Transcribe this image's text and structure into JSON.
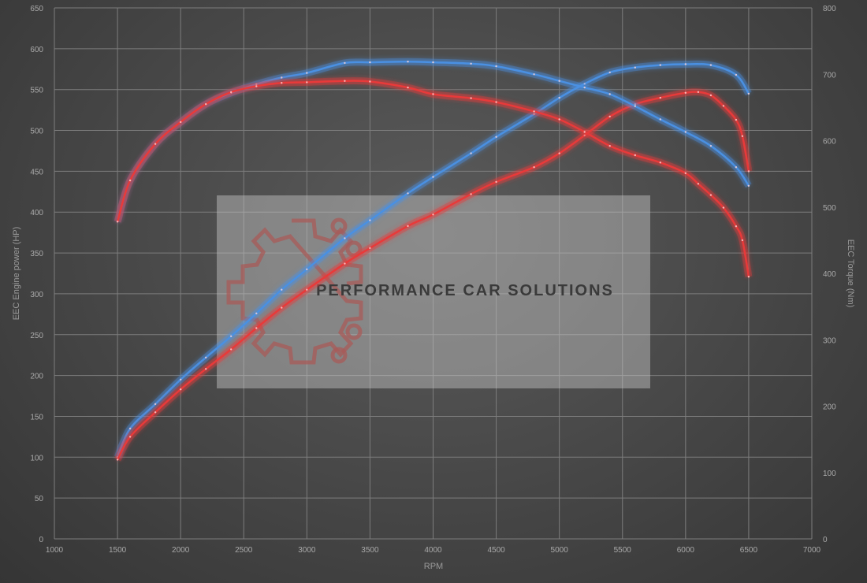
{
  "chart_data": {
    "type": "line",
    "watermark": "PERFORMANCE CAR SOLUTIONS",
    "xlabel": "RPM",
    "ylabel_left": "EEC Engine power (HP)",
    "ylabel_right": "EEC Torque (Nm)",
    "xlim": [
      1000,
      7000
    ],
    "ylim_left": [
      0,
      650
    ],
    "ylim_right": [
      0,
      800
    ],
    "x_ticks": [
      1000,
      1500,
      2000,
      2500,
      3000,
      3500,
      4000,
      4500,
      5000,
      5500,
      6000,
      6500,
      7000
    ],
    "y_left_ticks": [
      0,
      50,
      100,
      150,
      200,
      250,
      300,
      350,
      400,
      450,
      500,
      550,
      600,
      650
    ],
    "y_right_ticks": [
      0,
      100,
      200,
      300,
      400,
      500,
      600,
      700,
      800
    ],
    "grid": true,
    "series": [
      {
        "axis": "left",
        "color": "#4a90e2",
        "x": [
          1500,
          1600,
          1800,
          2000,
          2200,
          2400,
          2600,
          2800,
          3000,
          3300,
          3500,
          3800,
          4000,
          4300,
          4500,
          4800,
          5000,
          5200,
          5400,
          5600,
          5800,
          6000,
          6200,
          6400,
          6500
        ],
        "y": [
          100,
          135,
          165,
          195,
          222,
          248,
          276,
          305,
          330,
          368,
          390,
          423,
          443,
          472,
          492,
          520,
          540,
          557,
          571,
          577,
          580,
          581,
          580,
          568,
          545
        ]
      },
      {
        "axis": "left",
        "color": "#e83a3a",
        "x": [
          1500,
          1600,
          1800,
          2000,
          2200,
          2400,
          2600,
          2800,
          3000,
          3300,
          3500,
          3800,
          4000,
          4300,
          4500,
          4800,
          5000,
          5200,
          5400,
          5600,
          5800,
          6000,
          6100,
          6200,
          6300,
          6400,
          6450,
          6500
        ],
        "y": [
          97,
          125,
          155,
          183,
          208,
          232,
          258,
          283,
          305,
          337,
          356,
          383,
          397,
          422,
          437,
          455,
          472,
          494,
          517,
          532,
          540,
          546,
          547,
          543,
          530,
          513,
          493,
          450
        ]
      },
      {
        "axis": "right",
        "color": "#4a90e2",
        "x": [
          1500,
          1600,
          1800,
          2000,
          2200,
          2400,
          2600,
          2800,
          3000,
          3300,
          3500,
          3800,
          4000,
          4300,
          4500,
          4800,
          5000,
          5200,
          5400,
          5600,
          5800,
          6000,
          6200,
          6400,
          6500
        ],
        "y": [
          478,
          540,
          595,
          628,
          655,
          672,
          685,
          695,
          702,
          717,
          718,
          719,
          718,
          716,
          712,
          700,
          690,
          680,
          670,
          652,
          632,
          613,
          592,
          560,
          532
        ]
      },
      {
        "axis": "right",
        "color": "#e83a3a",
        "x": [
          1500,
          1600,
          1800,
          2000,
          2200,
          2400,
          2600,
          2800,
          3000,
          3300,
          3500,
          3800,
          4000,
          4300,
          4500,
          4800,
          5000,
          5200,
          5400,
          5600,
          5800,
          6000,
          6100,
          6200,
          6300,
          6400,
          6450,
          6500
        ],
        "y": [
          478,
          540,
          595,
          628,
          655,
          673,
          682,
          687,
          688,
          690,
          689,
          680,
          670,
          664,
          658,
          644,
          632,
          613,
          592,
          578,
          567,
          551,
          535,
          518,
          499,
          471,
          450,
          395
        ]
      }
    ]
  }
}
